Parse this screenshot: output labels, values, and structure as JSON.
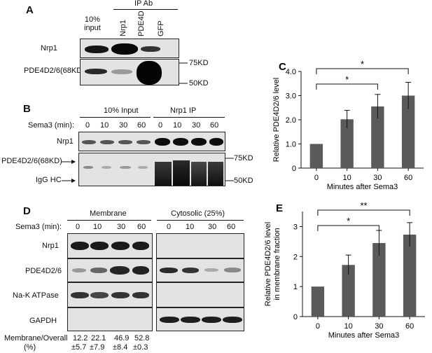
{
  "panelA": {
    "label": "A",
    "ipab": "IP Ab",
    "lanes": [
      "10%\ninput",
      "Nrp1",
      "PDE4D",
      "GFP"
    ],
    "rows": [
      "Nrp1",
      "PDE4D2/6(68KD)"
    ],
    "markers": [
      "75KD",
      "50KD"
    ]
  },
  "panelB": {
    "label": "B",
    "group1": "10% Input",
    "group2": "Nrp1 IP",
    "sema": "Sema3 (min):",
    "times": [
      "0",
      "10",
      "30",
      "60",
      "0",
      "10",
      "30",
      "60"
    ],
    "rows": [
      "Nrp1",
      "PDE4D2/6(68KD)",
      "IgG HC"
    ],
    "markers": [
      "75KD",
      "50KD"
    ]
  },
  "panelD": {
    "label": "D",
    "group1": "Membrane",
    "group2": "Cytosolic (25%)",
    "sema": "Sema3 (min):",
    "times": [
      "0",
      "10",
      "30",
      "60",
      "0",
      "10",
      "30",
      "60"
    ],
    "rows": [
      "Nrp1",
      "PDE4D2/6",
      "Na-K ATPase",
      "GAPDH"
    ],
    "ratio_label": "Membrane/Overall",
    "ratio_unit": "(%)",
    "ratio_means": [
      "12.2",
      "22.1",
      "46.9",
      "52.8"
    ],
    "ratio_sds": [
      "±5.7",
      "±7.9",
      "±8.4",
      "±0.3"
    ]
  },
  "chart_data": [
    {
      "panel": "C",
      "type": "bar",
      "categories": [
        "0",
        "10",
        "30",
        "60"
      ],
      "values": [
        1.0,
        2.02,
        2.55,
        3.0
      ],
      "errors": [
        0.0,
        0.37,
        0.5,
        0.55
      ],
      "xlabel": "Minutes after Sema3",
      "ylabel": "Relative PDE4D2/6 level",
      "ylim": [
        0,
        4.0
      ],
      "yticks": [
        "0",
        "1.0",
        "2.0",
        "3.0",
        "4.0"
      ],
      "significance": [
        {
          "from": "0",
          "to": "30",
          "mark": "*"
        },
        {
          "from": "0",
          "to": "60",
          "mark": "*"
        }
      ],
      "bar_color": "#5a5a5a",
      "grid": false
    },
    {
      "panel": "E",
      "type": "bar",
      "categories": [
        "0",
        "10",
        "30",
        "60"
      ],
      "values": [
        1.0,
        1.72,
        2.45,
        2.73
      ],
      "errors": [
        0.0,
        0.33,
        0.42,
        0.4
      ],
      "xlabel": "Minutes after Sema3",
      "ylabel": "Relative PDE4D2/6 level\nin membrane fraction",
      "ylim": [
        0,
        3.5
      ],
      "yticks": [
        "0",
        "1",
        "2",
        "3"
      ],
      "significance": [
        {
          "from": "0",
          "to": "30",
          "mark": "*"
        },
        {
          "from": "0",
          "to": "60",
          "mark": "**"
        }
      ],
      "bar_color": "#5a5a5a",
      "grid": false
    }
  ]
}
